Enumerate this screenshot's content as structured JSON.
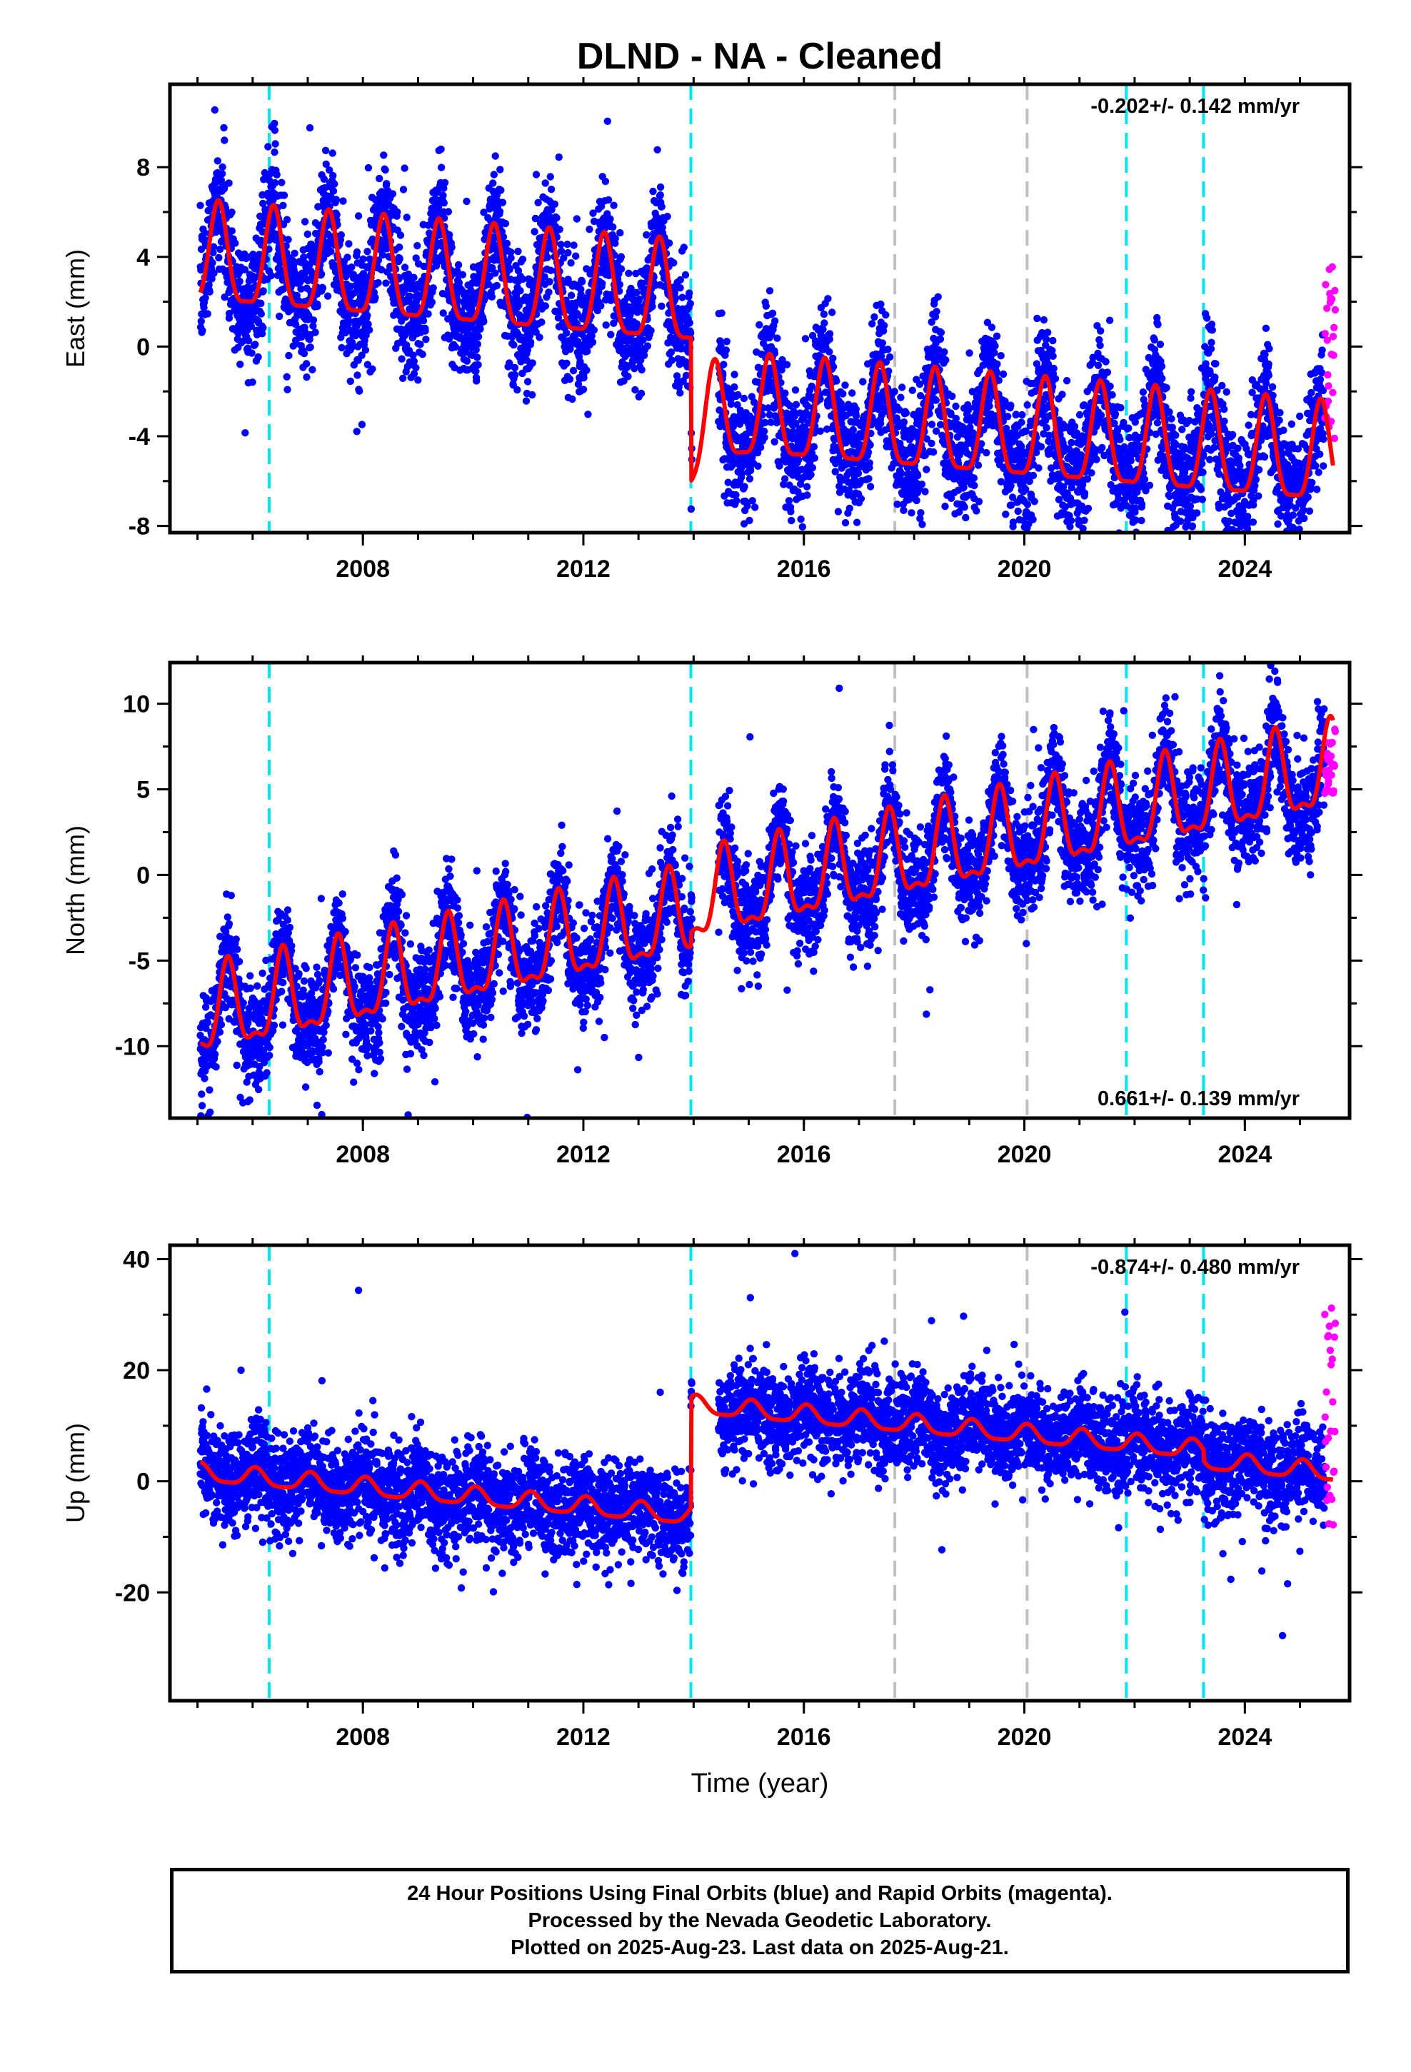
{
  "title": "DLND  - NA - Cleaned",
  "xlabel": "Time (year)",
  "footer": {
    "line1": "24 Hour Positions Using Final Orbits (blue) and Rapid Orbits (magenta).",
    "line2": "Processed by the Nevada Geodetic Laboratory.",
    "line3": "Plotted on 2025-Aug-23. Last data on 2025-Aug-21."
  },
  "colors": {
    "final_orbits": "#0000ff",
    "rapid_orbits": "#ff00ff",
    "model": "#ff0000",
    "equipment_change": "#00e5ee",
    "other_event": "#c0c0c0"
  },
  "chart_data": [
    {
      "type": "scatter",
      "panel": "east",
      "ylabel": "East (mm)",
      "rate": "-0.202+/- 0.142 mm/yr",
      "xlim": [
        2004.5,
        2025.9
      ],
      "ylim": [
        -8.3,
        11.7
      ],
      "xticks": [
        "2008",
        "2012",
        "2016",
        "2020",
        "2024"
      ],
      "xtick_values": [
        2008,
        2012,
        2016,
        2020,
        2024
      ],
      "yticks": [
        "-8",
        "-4",
        "0",
        "4",
        "8"
      ],
      "ytick_values": [
        -8,
        -4,
        0,
        4,
        8
      ],
      "events_cyan": [
        2006.3,
        2013.95,
        2021.85,
        2023.25
      ],
      "events_gray": [
        2017.65,
        2020.05
      ],
      "model": {
        "offset_before": 3.8,
        "offset_after": -1.0,
        "step_year": 2013.95,
        "trend": -0.202,
        "amp_annual": 2.2,
        "phase_peak": 0.38,
        "amp_semi": 0.6,
        "post_step_transient": -1.6
      },
      "scatter": {
        "sigma": 1.4,
        "outlier_rate": 0.01
      },
      "rapid_points": {
        "start": 2025.45,
        "end": 2025.64,
        "min": -4.5,
        "max": 3.8
      }
    },
    {
      "type": "scatter",
      "panel": "north",
      "ylabel": "North (mm)",
      "rate": "0.661+/- 0.139 mm/yr",
      "xlim": [
        2004.5,
        2025.9
      ],
      "ylim": [
        -14.2,
        12.4
      ],
      "xticks": [
        "2008",
        "2012",
        "2016",
        "2020",
        "2024"
      ],
      "xtick_values": [
        2008,
        2012,
        2016,
        2020,
        2024
      ],
      "yticks": [
        "-10",
        "-5",
        "0",
        "5",
        "10"
      ],
      "ytick_values": [
        -10,
        -5,
        0,
        5,
        10
      ],
      "events_cyan": [
        2006.3,
        2013.95,
        2021.85,
        2023.25
      ],
      "events_gray": [
        2017.65,
        2020.05
      ],
      "model": {
        "offset_before": -8.4,
        "offset_after": -7.6,
        "step_year": 2013.95,
        "trend": 0.661,
        "amp_annual": 2.4,
        "phase_peak": 0.55,
        "amp_semi": 0.9,
        "post_step_transient": 0.0
      },
      "scatter": {
        "sigma": 1.5,
        "outlier_rate": 0.01
      },
      "rapid_points": {
        "start": 2025.45,
        "end": 2025.64,
        "min": 4.6,
        "max": 9.5
      }
    },
    {
      "type": "scatter",
      "panel": "up",
      "ylabel": "Up (mm)",
      "rate": "-0.874+/- 0.480 mm/yr",
      "xlim": [
        2004.5,
        2025.9
      ],
      "ylim": [
        -39.5,
        42.5
      ],
      "xticks": [
        "2008",
        "2012",
        "2016",
        "2020",
        "2024"
      ],
      "xtick_values": [
        2008,
        2012,
        2016,
        2020,
        2024
      ],
      "yticks": [
        "-20",
        "0",
        "20",
        "40"
      ],
      "ytick_values": [
        -20,
        0,
        20,
        40
      ],
      "events_cyan": [
        2006.3,
        2013.95,
        2021.85,
        2023.25
      ],
      "events_gray": [
        2017.65,
        2020.05
      ],
      "model": {
        "offset_before": 1.5,
        "offset_after": 21.5,
        "step_year": 2013.95,
        "trend": -0.874,
        "amp_annual": 1.6,
        "phase_peak": 0.05,
        "amp_semi": 0.4,
        "post_step_transient": 0.0,
        "step_2023": -2.0
      },
      "scatter": {
        "sigma": 4.3,
        "outlier_rate": 0.01
      },
      "rapid_points": {
        "start": 2025.45,
        "end": 2025.64,
        "min": -8.0,
        "max": 31.5
      }
    }
  ]
}
